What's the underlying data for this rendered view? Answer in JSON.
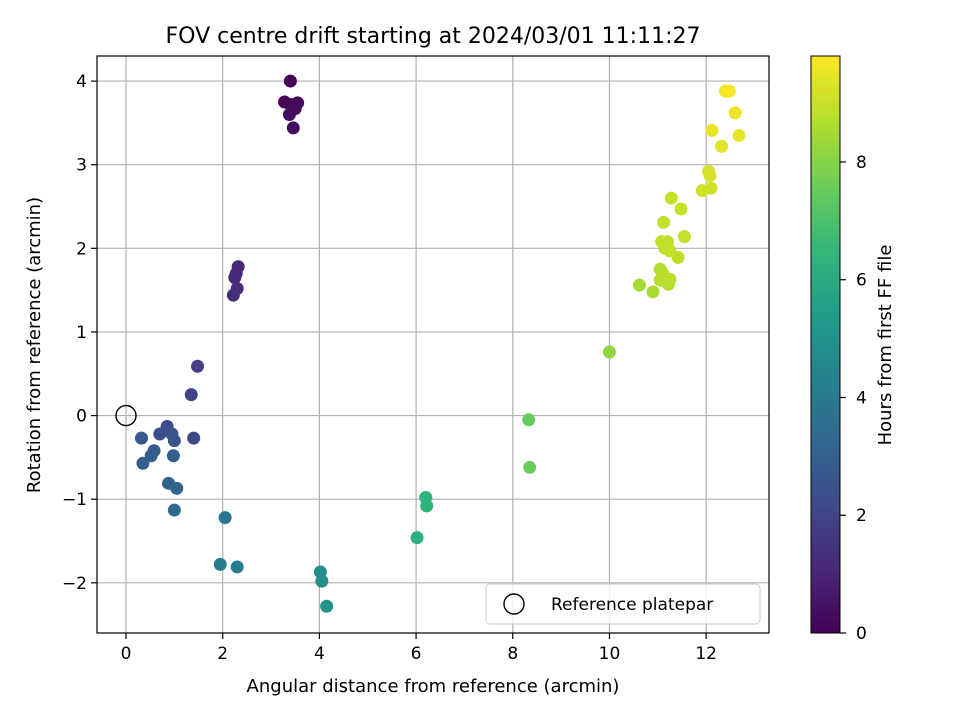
{
  "chart_data": {
    "type": "scatter",
    "title": "FOV centre drift starting at 2024/03/01 11:11:27",
    "xlabel": "Angular distance from reference (arcmin)",
    "ylabel": "Rotation from reference (arcmin)",
    "xlim": [
      -0.6,
      13.3
    ],
    "ylim": [
      -2.6,
      4.3
    ],
    "xticks": [
      0,
      2,
      4,
      6,
      8,
      10,
      12
    ],
    "yticks": [
      -2,
      -1,
      0,
      1,
      2,
      3,
      4
    ],
    "grid": true,
    "legend": {
      "position": "lower-right",
      "entries": [
        "Reference platepar"
      ]
    },
    "reference_point": {
      "x": 0,
      "y": 0,
      "label": "Reference platepar"
    },
    "colorbar": {
      "label": "Hours from first FF file",
      "range": [
        0,
        9.8
      ],
      "ticks": [
        0,
        2,
        4,
        6,
        8
      ],
      "colormap": "viridis"
    },
    "points": [
      {
        "x": 3.4,
        "y": 4.0,
        "c": 0.05
      },
      {
        "x": 3.28,
        "y": 3.75,
        "c": 0.1
      },
      {
        "x": 3.4,
        "y": 3.72,
        "c": 0.15
      },
      {
        "x": 3.55,
        "y": 3.74,
        "c": 0.2
      },
      {
        "x": 3.5,
        "y": 3.67,
        "c": 0.25
      },
      {
        "x": 3.38,
        "y": 3.6,
        "c": 0.3
      },
      {
        "x": 3.46,
        "y": 3.44,
        "c": 0.4
      },
      {
        "x": 2.32,
        "y": 1.78,
        "c": 1.1
      },
      {
        "x": 2.28,
        "y": 1.7,
        "c": 1.15
      },
      {
        "x": 2.25,
        "y": 1.65,
        "c": 1.2
      },
      {
        "x": 2.3,
        "y": 1.52,
        "c": 1.25
      },
      {
        "x": 2.22,
        "y": 1.44,
        "c": 1.3
      },
      {
        "x": 1.48,
        "y": 0.59,
        "c": 1.9
      },
      {
        "x": 1.35,
        "y": 0.25,
        "c": 2.0
      },
      {
        "x": 1.4,
        "y": -0.27,
        "c": 2.1
      },
      {
        "x": 0.85,
        "y": -0.13,
        "c": 2.3
      },
      {
        "x": 0.7,
        "y": -0.22,
        "c": 2.4
      },
      {
        "x": 0.95,
        "y": -0.22,
        "c": 2.5
      },
      {
        "x": 1.0,
        "y": -0.3,
        "c": 2.6
      },
      {
        "x": 0.32,
        "y": -0.27,
        "c": 2.7
      },
      {
        "x": 0.58,
        "y": -0.42,
        "c": 2.8
      },
      {
        "x": 0.52,
        "y": -0.48,
        "c": 2.85
      },
      {
        "x": 0.98,
        "y": -0.48,
        "c": 2.9
      },
      {
        "x": 0.35,
        "y": -0.57,
        "c": 2.95
      },
      {
        "x": 0.88,
        "y": -0.81,
        "c": 3.1
      },
      {
        "x": 1.05,
        "y": -0.87,
        "c": 3.2
      },
      {
        "x": 1.0,
        "y": -1.13,
        "c": 3.3
      },
      {
        "x": 2.05,
        "y": -1.22,
        "c": 3.8
      },
      {
        "x": 1.95,
        "y": -1.78,
        "c": 4.0
      },
      {
        "x": 2.3,
        "y": -1.81,
        "c": 4.1
      },
      {
        "x": 4.02,
        "y": -1.87,
        "c": 4.8
      },
      {
        "x": 4.05,
        "y": -1.98,
        "c": 4.9
      },
      {
        "x": 4.15,
        "y": -2.28,
        "c": 5.0
      },
      {
        "x": 6.02,
        "y": -1.46,
        "c": 6.2
      },
      {
        "x": 6.2,
        "y": -0.98,
        "c": 6.3
      },
      {
        "x": 6.22,
        "y": -1.08,
        "c": 6.35
      },
      {
        "x": 8.33,
        "y": -0.05,
        "c": 7.5
      },
      {
        "x": 8.35,
        "y": -0.62,
        "c": 7.55
      },
      {
        "x": 10.0,
        "y": 0.76,
        "c": 8.2
      },
      {
        "x": 10.62,
        "y": 1.56,
        "c": 8.5
      },
      {
        "x": 10.9,
        "y": 1.48,
        "c": 8.6
      },
      {
        "x": 11.05,
        "y": 1.75,
        "c": 8.7
      },
      {
        "x": 11.1,
        "y": 1.7,
        "c": 8.72
      },
      {
        "x": 11.15,
        "y": 1.65,
        "c": 8.74
      },
      {
        "x": 11.05,
        "y": 1.62,
        "c": 8.76
      },
      {
        "x": 11.2,
        "y": 1.6,
        "c": 8.78
      },
      {
        "x": 11.22,
        "y": 1.57,
        "c": 8.8
      },
      {
        "x": 11.25,
        "y": 1.63,
        "c": 8.82
      },
      {
        "x": 11.08,
        "y": 2.08,
        "c": 8.84
      },
      {
        "x": 11.2,
        "y": 2.08,
        "c": 8.86
      },
      {
        "x": 11.15,
        "y": 2.0,
        "c": 8.88
      },
      {
        "x": 11.25,
        "y": 1.97,
        "c": 8.9
      },
      {
        "x": 11.42,
        "y": 1.89,
        "c": 8.92
      },
      {
        "x": 11.55,
        "y": 2.14,
        "c": 8.94
      },
      {
        "x": 11.12,
        "y": 2.31,
        "c": 8.96
      },
      {
        "x": 11.48,
        "y": 2.47,
        "c": 8.98
      },
      {
        "x": 11.28,
        "y": 2.6,
        "c": 9.0
      },
      {
        "x": 11.92,
        "y": 2.69,
        "c": 9.1
      },
      {
        "x": 12.1,
        "y": 2.72,
        "c": 9.15
      },
      {
        "x": 12.05,
        "y": 2.92,
        "c": 9.2
      },
      {
        "x": 12.08,
        "y": 2.87,
        "c": 9.25
      },
      {
        "x": 12.32,
        "y": 3.22,
        "c": 9.4
      },
      {
        "x": 12.12,
        "y": 3.41,
        "c": 9.45
      },
      {
        "x": 12.68,
        "y": 3.35,
        "c": 9.5
      },
      {
        "x": 12.6,
        "y": 3.62,
        "c": 9.55
      },
      {
        "x": 12.4,
        "y": 3.88,
        "c": 9.6
      },
      {
        "x": 12.48,
        "y": 3.88,
        "c": 9.7
      }
    ]
  }
}
